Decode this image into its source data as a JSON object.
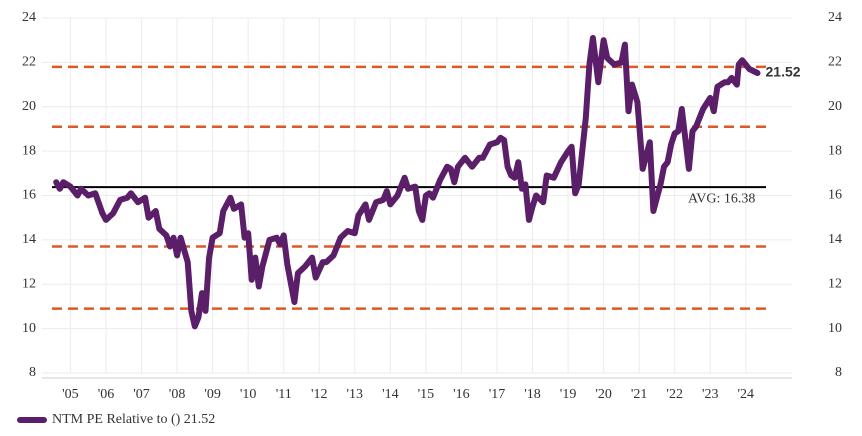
{
  "chart_data": {
    "type": "line",
    "x": [
      2005.1,
      2005.2,
      2005.3,
      2005.5,
      2005.7,
      2005.8,
      2006.0,
      2006.2,
      2006.4,
      2006.5,
      2006.7,
      2006.9,
      2007.1,
      2007.2,
      2007.4,
      2007.6,
      2007.7,
      2007.9,
      2008.0,
      2008.2,
      2008.3,
      2008.4,
      2008.5,
      2008.6,
      2008.8,
      2008.9,
      2009.0,
      2009.1,
      2009.2,
      2009.3,
      2009.4,
      2009.5,
      2009.7,
      2009.8,
      2010.0,
      2010.1,
      2010.3,
      2010.4,
      2010.5,
      2010.6,
      2010.7,
      2010.8,
      2010.9,
      2011.1,
      2011.3,
      2011.4,
      2011.5,
      2011.6,
      2011.8,
      2011.9,
      2012.1,
      2012.3,
      2012.4,
      2012.6,
      2012.7,
      2012.9,
      2013.1,
      2013.3,
      2013.5,
      2013.6,
      2013.8,
      2013.9,
      2014.1,
      2014.3,
      2014.4,
      2014.5,
      2014.7,
      2014.9,
      2015.0,
      2015.2,
      2015.3,
      2015.4,
      2015.5,
      2015.6,
      2015.7,
      2015.9,
      2016.1,
      2016.2,
      2016.3,
      2016.4,
      2016.6,
      2016.8,
      2017.0,
      2017.1,
      2017.3,
      2017.5,
      2017.6,
      2017.7,
      2017.8,
      2017.9,
      2018.0,
      2018.1,
      2018.2,
      2018.3,
      2018.4,
      2018.5,
      2018.6,
      2018.8,
      2018.9,
      2019.1,
      2019.3,
      2019.5,
      2019.6,
      2019.7,
      2019.8,
      2020.0,
      2020.1,
      2020.2,
      2020.35,
      2020.5,
      2020.6,
      2020.8,
      2021.0,
      2021.1,
      2021.2,
      2021.3,
      2021.45,
      2021.5,
      2021.6,
      2021.8,
      2021.9,
      2022.0,
      2022.1,
      2022.2,
      2022.3,
      2022.4,
      2022.5,
      2022.6,
      2022.7,
      2022.9,
      2023.0,
      2023.1,
      2023.3,
      2023.5,
      2023.6,
      2023.7,
      2023.9,
      2024.0,
      2024.1,
      2024.25,
      2024.3,
      2024.4,
      2024.6,
      2024.83
    ],
    "series": [
      {
        "name": "NTM PE Relative to () 21.52",
        "color": "#5b1f6a",
        "end_label": "21.52",
        "values": [
          16.6,
          16.3,
          16.6,
          16.4,
          16.0,
          16.3,
          16.0,
          16.1,
          15.2,
          14.9,
          15.2,
          15.8,
          15.9,
          16.1,
          15.7,
          15.9,
          15.0,
          15.3,
          14.5,
          14.2,
          13.7,
          14.1,
          13.3,
          14.1,
          13.0,
          10.8,
          10.1,
          10.5,
          11.6,
          10.8,
          13.2,
          14.1,
          14.3,
          15.3,
          15.9,
          15.4,
          15.6,
          14.1,
          14.3,
          12.2,
          13.2,
          11.9,
          12.8,
          14.0,
          14.1,
          13.8,
          14.2,
          12.9,
          11.2,
          12.5,
          12.8,
          13.2,
          12.3,
          13.0,
          13.0,
          13.3,
          14.1,
          14.4,
          14.3,
          15.1,
          15.6,
          14.9,
          15.7,
          15.8,
          16.2,
          15.6,
          16.0,
          16.8,
          16.3,
          16.4,
          15.3,
          14.9,
          16.0,
          16.1,
          15.9,
          16.7,
          17.3,
          17.2,
          16.6,
          17.3,
          17.7,
          17.3,
          17.7,
          17.7,
          18.3,
          18.4,
          18.6,
          18.5,
          17.3,
          16.9,
          16.8,
          17.5,
          16.3,
          16.5,
          14.9,
          15.5,
          16.0,
          15.7,
          16.9,
          16.8,
          17.5,
          18.0,
          18.2,
          16.1,
          16.5,
          19.5,
          21.9,
          23.1,
          21.1,
          23.0,
          22.2,
          21.9,
          22.0,
          22.8,
          19.8,
          21.0,
          20.2,
          19.2,
          17.2,
          18.4,
          15.3,
          15.9,
          16.5,
          17.3,
          17.5,
          18.3,
          18.8,
          18.9,
          19.9,
          17.2,
          18.9,
          19.1,
          19.9,
          20.4,
          19.8,
          20.9,
          21.1,
          21.1,
          21.3,
          21.0,
          21.9,
          22.1,
          21.7,
          21.52
        ]
      }
    ],
    "reference_lines": [
      {
        "value": 21.8,
        "color": "#dc5a26",
        "style": "dashed"
      },
      {
        "value": 19.1,
        "color": "#dc5a26",
        "style": "dashed"
      },
      {
        "value": 16.38,
        "color": "#000000",
        "style": "solid",
        "label": "AVG: 16.38"
      },
      {
        "value": 13.7,
        "color": "#dc5a26",
        "style": "dashed"
      },
      {
        "value": 10.9,
        "color": "#dc5a26",
        "style": "dashed"
      }
    ],
    "xlim": [
      2004.7,
      2025.8
    ],
    "xticks": [
      {
        "value": 2005.5,
        "label": "'05"
      },
      {
        "value": 2006.5,
        "label": "'06"
      },
      {
        "value": 2007.5,
        "label": "'07"
      },
      {
        "value": 2008.5,
        "label": "'08"
      },
      {
        "value": 2009.5,
        "label": "'09"
      },
      {
        "value": 2010.5,
        "label": "'10"
      },
      {
        "value": 2011.5,
        "label": "'11"
      },
      {
        "value": 2012.5,
        "label": "'12"
      },
      {
        "value": 2013.5,
        "label": "'13"
      },
      {
        "value": 2014.5,
        "label": "'14"
      },
      {
        "value": 2015.5,
        "label": "'15"
      },
      {
        "value": 2016.5,
        "label": "'16"
      },
      {
        "value": 2017.5,
        "label": "'17"
      },
      {
        "value": 2018.5,
        "label": "'18"
      },
      {
        "value": 2019.5,
        "label": "'19"
      },
      {
        "value": 2020.5,
        "label": "'20"
      },
      {
        "value": 2021.5,
        "label": "'21"
      },
      {
        "value": 2022.5,
        "label": "'22"
      },
      {
        "value": 2023.5,
        "label": "'23"
      },
      {
        "value": 2024.5,
        "label": "'24"
      }
    ],
    "ylim": [
      8,
      24
    ],
    "yticks": [
      8,
      10,
      12,
      14,
      16,
      18,
      20,
      22,
      24
    ],
    "y2ticks": [
      8,
      10,
      12,
      14,
      16,
      18,
      20,
      22,
      24
    ],
    "grid": true,
    "legend": "bottom-left"
  }
}
